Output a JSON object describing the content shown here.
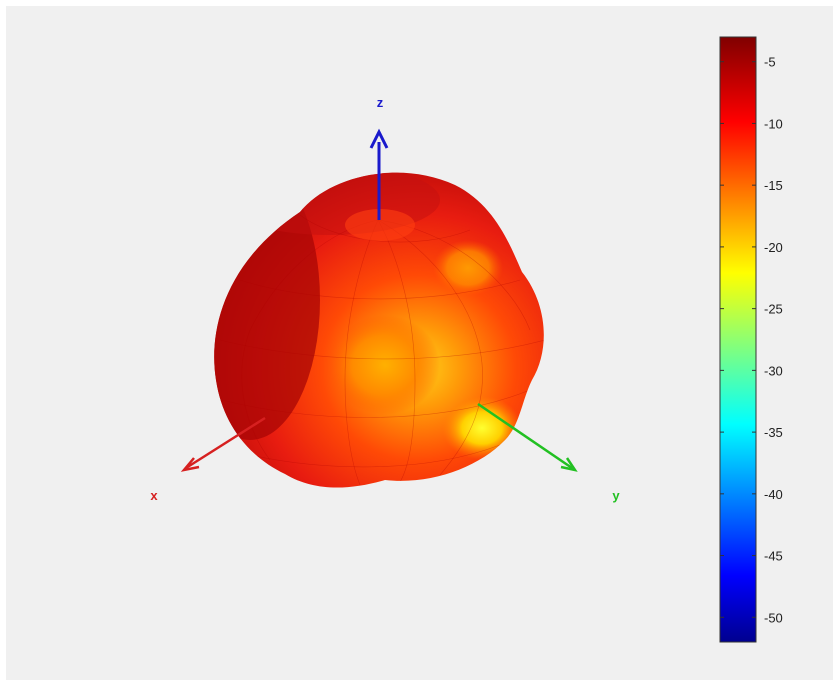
{
  "chart_data": {
    "type": "heatmap",
    "variant": "3d-radiation-pattern",
    "colormap": "jet",
    "axes": [
      {
        "name": "x",
        "label": "x",
        "color": "#d62020"
      },
      {
        "name": "y",
        "label": "y",
        "color": "#22c022"
      },
      {
        "name": "z",
        "label": "z",
        "color": "#1a1acc"
      }
    ],
    "colorbar": {
      "clim": [
        -52,
        -3
      ],
      "ticks": [
        -5,
        -10,
        -15,
        -20,
        -25,
        -30,
        -35,
        -40,
        -45,
        -50
      ],
      "tick_labels": [
        "-5",
        "-10",
        "-15",
        "-20",
        "-25",
        "-30",
        "-35",
        "-40",
        "-45",
        "-50"
      ]
    },
    "surface": {
      "value_range_shown": [
        -21,
        -4
      ],
      "colors_present": [
        "#8b0000",
        "#c00000",
        "#e81b10",
        "#ff3c00",
        "#ff6a00",
        "#ff9a00",
        "#ffd000",
        "#ffff40"
      ]
    }
  },
  "colors": {
    "background": "#f0f0f0",
    "page": "#ffffff"
  }
}
